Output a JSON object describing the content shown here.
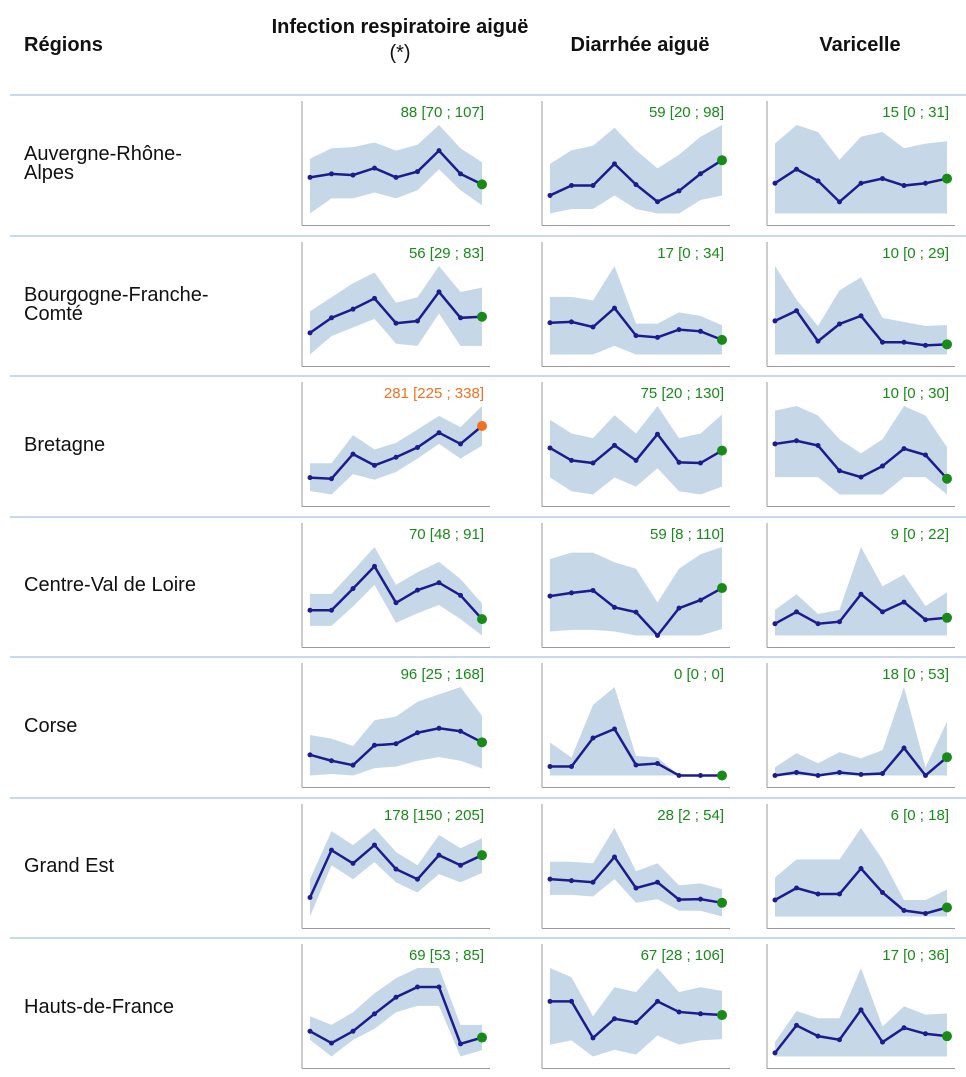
{
  "header": {
    "region": "Régions",
    "columns": [
      {
        "title": "Infection respiratoire aiguë",
        "note": "(*)"
      },
      {
        "title": "Diarrhée aiguë"
      },
      {
        "title": "Varicelle"
      }
    ]
  },
  "rows": [
    {
      "region": "Auvergne-Rhône-Alpes",
      "panels": [
        {
          "label": "88 [70 ; 107]",
          "color": "#188a18",
          "values": [
            94,
            97,
            96,
            102,
            94,
            99,
            117,
            97,
            88
          ],
          "lower": [
            63,
            76,
            76,
            81,
            76,
            83,
            101,
            83,
            70
          ],
          "upper": [
            110,
            119,
            120,
            124,
            117,
            122,
            139,
            119,
            107
          ]
        },
        {
          "label": "59 [20 ; 98]",
          "color": "#188a18",
          "values": [
            20,
            31,
            31,
            55,
            32,
            13,
            25,
            44,
            59
          ],
          "lower": [
            0,
            5,
            5,
            20,
            5,
            0,
            0,
            15,
            20
          ],
          "upper": [
            55,
            70,
            75,
            95,
            70,
            50,
            65,
            85,
            98
          ]
        },
        {
          "label": "15 [0 ; 31]",
          "color": "#188a18",
          "values": [
            13,
            19,
            14,
            5,
            13,
            15,
            12,
            13,
            15
          ],
          "lower": [
            0,
            0,
            0,
            0,
            0,
            0,
            0,
            0,
            0
          ],
          "upper": [
            30,
            38,
            35,
            23,
            33,
            35,
            28,
            30,
            31
          ]
        }
      ]
    },
    {
      "region": "Bourgogne-Franche-Comté",
      "panels": [
        {
          "label": "56 [29 ; 83]",
          "color": "#188a18",
          "values": [
            41,
            55,
            63,
            73,
            50,
            52,
            79,
            55,
            56
          ],
          "lower": [
            21,
            38,
            46,
            54,
            31,
            29,
            59,
            29,
            29
          ],
          "upper": [
            61,
            74,
            87,
            97,
            69,
            74,
            103,
            79,
            83
          ]
        },
        {
          "label": "17 [0 ; 34]",
          "color": "#188a18",
          "values": [
            37,
            38,
            32,
            54,
            22,
            20,
            29,
            27,
            17
          ],
          "lower": [
            0,
            0,
            0,
            10,
            0,
            0,
            0,
            0,
            0
          ],
          "upper": [
            67,
            67,
            63,
            103,
            36,
            36,
            49,
            45,
            34
          ]
        },
        {
          "label": "10 [0 ; 29]",
          "color": "#188a18",
          "values": [
            33,
            43,
            13,
            30,
            38,
            12,
            12,
            9,
            10
          ],
          "lower": [
            0,
            0,
            0,
            0,
            0,
            0,
            0,
            0,
            0
          ],
          "upper": [
            87,
            54,
            28,
            63,
            76,
            36,
            32,
            28,
            29
          ]
        }
      ]
    },
    {
      "region": "Bretagne",
      "panels": [
        {
          "label": "281 [225 ; 338]",
          "color": "#f07020",
          "values": [
            134,
            131,
            201,
            169,
            192,
            220,
            262,
            230,
            281
          ],
          "lower": [
            96,
            86,
            144,
            128,
            150,
            188,
            230,
            188,
            225
          ],
          "upper": [
            175,
            175,
            255,
            214,
            233,
            271,
            310,
            278,
            338
          ]
        },
        {
          "label": "75 [20 ; 130]",
          "color": "#188a18",
          "values": [
            79,
            60,
            56,
            83,
            60,
            100,
            57,
            56,
            75
          ],
          "lower": [
            34,
            13,
            8,
            34,
            20,
            48,
            13,
            8,
            20
          ],
          "upper": [
            122,
            101,
            94,
            129,
            101,
            143,
            94,
            101,
            130
          ]
        },
        {
          "label": "10 [0 ; 30]",
          "color": "#188a18",
          "values": [
            32,
            34,
            31,
            15,
            11,
            18,
            29,
            25,
            10
          ],
          "lower": [
            11,
            11,
            11,
            0,
            0,
            0,
            11,
            11,
            0
          ],
          "upper": [
            53,
            56,
            50,
            35,
            26,
            35,
            56,
            50,
            30
          ]
        }
      ]
    },
    {
      "region": "Centre-Val de Loire",
      "panels": [
        {
          "label": "70 [48 ; 91]",
          "color": "#188a18",
          "values": [
            82,
            82,
            111,
            141,
            92,
            109,
            119,
            102,
            70
          ],
          "lower": [
            61,
            61,
            87,
            116,
            65,
            78,
            89,
            70,
            48
          ],
          "upper": [
            104,
            104,
            135,
            167,
            116,
            133,
            147,
            124,
            91
          ]
        },
        {
          "label": "59 [8 ; 110]",
          "color": "#188a18",
          "values": [
            49,
            53,
            56,
            35,
            29,
            0,
            34,
            44,
            59
          ],
          "lower": [
            5,
            7,
            7,
            5,
            0,
            0,
            0,
            0,
            8
          ],
          "upper": [
            95,
            103,
            103,
            91,
            83,
            41,
            83,
            101,
            110
          ]
        },
        {
          "label": "9 [0 ; 22]",
          "color": "#188a18",
          "values": [
            6,
            12,
            6,
            7,
            21,
            12,
            17,
            8,
            9
          ],
          "lower": [
            0,
            0,
            0,
            0,
            0,
            0,
            0,
            0,
            0
          ],
          "upper": [
            13,
            21,
            11,
            13,
            45,
            25,
            31,
            15,
            22
          ]
        }
      ]
    },
    {
      "region": "Corse",
      "panels": [
        {
          "label": "96 [25 ; 168]",
          "color": "#188a18",
          "values": [
            62,
            46,
            34,
            88,
            92,
            122,
            134,
            126,
            96
          ],
          "lower": [
            6,
            10,
            6,
            26,
            30,
            46,
            56,
            46,
            25
          ],
          "upper": [
            116,
            106,
            86,
            156,
            166,
            206,
            226,
            246,
            168
          ]
        },
        {
          "label": "0 [0 ; 0]",
          "color": "#188a18",
          "values": [
            0.6,
            0.6,
            2.5,
            3.1,
            0.7,
            0.8,
            0,
            0,
            0
          ],
          "lower": [
            0,
            0,
            0,
            0,
            0,
            0,
            0,
            0,
            0
          ],
          "upper": [
            2.2,
            1.2,
            4.7,
            5.9,
            1.3,
            1.2,
            0,
            0,
            0
          ]
        },
        {
          "label": "18 [0 ; 53]",
          "color": "#188a18",
          "values": [
            0,
            3,
            0,
            3,
            1,
            2,
            27,
            0,
            18
          ],
          "lower": [
            0,
            0,
            0,
            0,
            0,
            0,
            0,
            0,
            0
          ],
          "upper": [
            8,
            22,
            12,
            23,
            17,
            25,
            87,
            8,
            53
          ]
        }
      ]
    },
    {
      "region": "Grand Est",
      "panels": [
        {
          "label": "178 [150 ; 205]",
          "color": "#188a18",
          "values": [
            111,
            186,
            165,
            194,
            156,
            140,
            178,
            162,
            178
          ],
          "lower": [
            81,
            162,
            140,
            167,
            135,
            119,
            148,
            135,
            150
          ],
          "upper": [
            140,
            216,
            194,
            221,
            183,
            162,
            210,
            189,
            205
          ]
        },
        {
          "label": "28 [2 ; 54]",
          "color": "#188a18",
          "values": [
            73,
            70,
            67,
            115,
            56,
            67,
            34,
            35,
            28
          ],
          "lower": [
            43,
            43,
            40,
            73,
            28,
            35,
            13,
            13,
            2
          ],
          "upper": [
            106,
            106,
            103,
            170,
            88,
            103,
            61,
            65,
            54
          ]
        },
        {
          "label": "6 [0 ; 18]",
          "color": "#188a18",
          "values": [
            11,
            19,
            15,
            15,
            32,
            16,
            4,
            2,
            6
          ],
          "lower": [
            0,
            0,
            0,
            0,
            0,
            0,
            0,
            0,
            0
          ],
          "upper": [
            26,
            38,
            38,
            38,
            59,
            38,
            11,
            11,
            18
          ]
        }
      ]
    },
    {
      "region": "Hauts-de-France",
      "panels": [
        {
          "label": "69 [53 ; 85]",
          "color": "#188a18",
          "values": [
            77,
            62,
            77,
            99,
            120,
            133,
            133,
            61,
            69
          ],
          "lower": [
            66,
            45,
            66,
            80,
            101,
            109,
            109,
            45,
            53
          ],
          "upper": [
            96,
            85,
            101,
            125,
            144,
            157,
            157,
            85,
            85
          ]
        },
        {
          "label": "67 [28 ; 106]",
          "color": "#188a18",
          "values": [
            89,
            89,
            30,
            61,
            55,
            89,
            72,
            69,
            67
          ],
          "lower": [
            19,
            26,
            0,
            11,
            3,
            34,
            19,
            26,
            28
          ],
          "upper": [
            143,
            128,
            65,
            112,
            104,
            143,
            104,
            112,
            106
          ]
        },
        {
          "label": "17 [0 ; 36]",
          "color": "#188a18",
          "values": [
            3,
            26,
            17,
            14,
            39,
            12,
            24,
            19,
            17
          ],
          "lower": [
            0,
            0,
            0,
            0,
            0,
            0,
            0,
            0,
            0
          ],
          "upper": [
            12,
            38,
            32,
            32,
            74,
            25,
            42,
            35,
            36
          ]
        }
      ]
    }
  ]
}
